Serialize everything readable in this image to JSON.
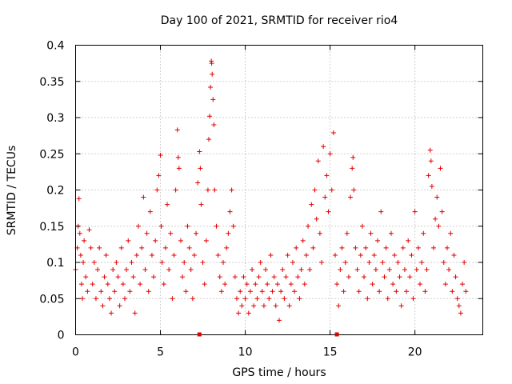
{
  "chart_data": {
    "type": "scatter",
    "title": "Day 100 of 2021, SRMTID for receiver rio4",
    "xlabel": "GPS time / hours",
    "ylabel": "SRMTID / TECUs",
    "xlim": [
      0,
      24
    ],
    "ylim": [
      0,
      0.4
    ],
    "x_ticks": [
      0,
      5,
      10,
      15,
      20
    ],
    "x_tick_labels": [
      "0",
      "5",
      "10",
      "15",
      "20"
    ],
    "y_ticks": [
      0,
      0.05,
      0.1,
      0.15,
      0.2,
      0.25,
      0.3,
      0.35,
      0.4
    ],
    "y_tick_labels": [
      "0",
      "0.05",
      "0.1",
      "0.15",
      "0.2",
      "0.25",
      "0.3",
      "0.35",
      "0.4"
    ],
    "grid": true,
    "marker": "+",
    "color": "#e00000",
    "x_axis_markers": [
      7.3,
      15.4
    ],
    "series": [
      {
        "name": "SRMTID",
        "points": [
          [
            0.0,
            0.09
          ],
          [
            0.1,
            0.12
          ],
          [
            0.15,
            0.15
          ],
          [
            0.2,
            0.188
          ],
          [
            0.25,
            0.14
          ],
          [
            0.3,
            0.11
          ],
          [
            0.35,
            0.07
          ],
          [
            0.4,
            0.05
          ],
          [
            0.45,
            0.1
          ],
          [
            0.5,
            0.13
          ],
          [
            0.6,
            0.08
          ],
          [
            0.7,
            0.06
          ],
          [
            0.8,
            0.145
          ],
          [
            0.9,
            0.12
          ],
          [
            1.0,
            0.07
          ],
          [
            1.1,
            0.1
          ],
          [
            1.2,
            0.05
          ],
          [
            1.3,
            0.09
          ],
          [
            1.4,
            0.12
          ],
          [
            1.5,
            0.06
          ],
          [
            1.6,
            0.04
          ],
          [
            1.7,
            0.08
          ],
          [
            1.8,
            0.11
          ],
          [
            1.9,
            0.07
          ],
          [
            2.0,
            0.05
          ],
          [
            2.1,
            0.03
          ],
          [
            2.2,
            0.09
          ],
          [
            2.3,
            0.06
          ],
          [
            2.4,
            0.1
          ],
          [
            2.5,
            0.08
          ],
          [
            2.6,
            0.04
          ],
          [
            2.7,
            0.12
          ],
          [
            2.8,
            0.07
          ],
          [
            2.9,
            0.05
          ],
          [
            3.0,
            0.09
          ],
          [
            3.1,
            0.13
          ],
          [
            3.2,
            0.06
          ],
          [
            3.3,
            0.1
          ],
          [
            3.4,
            0.08
          ],
          [
            3.5,
            0.03
          ],
          [
            3.6,
            0.11
          ],
          [
            3.7,
            0.15
          ],
          [
            3.8,
            0.07
          ],
          [
            3.9,
            0.12
          ],
          [
            4.0,
            0.19
          ],
          [
            4.1,
            0.09
          ],
          [
            4.2,
            0.14
          ],
          [
            4.3,
            0.06
          ],
          [
            4.4,
            0.17
          ],
          [
            4.5,
            0.11
          ],
          [
            4.6,
            0.08
          ],
          [
            4.7,
            0.13
          ],
          [
            4.8,
            0.2
          ],
          [
            4.9,
            0.22
          ],
          [
            5.0,
            0.248
          ],
          [
            5.05,
            0.15
          ],
          [
            5.1,
            0.1
          ],
          [
            5.2,
            0.07
          ],
          [
            5.3,
            0.12
          ],
          [
            5.4,
            0.18
          ],
          [
            5.5,
            0.09
          ],
          [
            5.6,
            0.14
          ],
          [
            5.7,
            0.05
          ],
          [
            5.8,
            0.11
          ],
          [
            5.9,
            0.2
          ],
          [
            6.0,
            0.283
          ],
          [
            6.05,
            0.245
          ],
          [
            6.1,
            0.23
          ],
          [
            6.2,
            0.13
          ],
          [
            6.3,
            0.08
          ],
          [
            6.4,
            0.1
          ],
          [
            6.5,
            0.06
          ],
          [
            6.6,
            0.15
          ],
          [
            6.7,
            0.12
          ],
          [
            6.8,
            0.09
          ],
          [
            6.9,
            0.05
          ],
          [
            7.0,
            0.11
          ],
          [
            7.1,
            0.14
          ],
          [
            7.2,
            0.21
          ],
          [
            7.3,
            0.253
          ],
          [
            7.35,
            0.23
          ],
          [
            7.4,
            0.18
          ],
          [
            7.5,
            0.1
          ],
          [
            7.6,
            0.07
          ],
          [
            7.7,
            0.13
          ],
          [
            7.8,
            0.2
          ],
          [
            7.85,
            0.27
          ],
          [
            7.9,
            0.302
          ],
          [
            7.95,
            0.342
          ],
          [
            8.0,
            0.378
          ],
          [
            8.02,
            0.375
          ],
          [
            8.05,
            0.36
          ],
          [
            8.1,
            0.325
          ],
          [
            8.15,
            0.29
          ],
          [
            8.2,
            0.2
          ],
          [
            8.3,
            0.15
          ],
          [
            8.4,
            0.11
          ],
          [
            8.5,
            0.08
          ],
          [
            8.6,
            0.06
          ],
          [
            8.7,
            0.1
          ],
          [
            8.8,
            0.07
          ],
          [
            8.9,
            0.12
          ],
          [
            9.0,
            0.14
          ],
          [
            9.1,
            0.17
          ],
          [
            9.2,
            0.2
          ],
          [
            9.3,
            0.15
          ],
          [
            9.4,
            0.08
          ],
          [
            9.5,
            0.05
          ],
          [
            9.6,
            0.03
          ],
          [
            9.7,
            0.06
          ],
          [
            9.8,
            0.04
          ],
          [
            9.9,
            0.08
          ],
          [
            10.0,
            0.05
          ],
          [
            10.1,
            0.07
          ],
          [
            10.2,
            0.03
          ],
          [
            10.3,
            0.06
          ],
          [
            10.4,
            0.09
          ],
          [
            10.5,
            0.04
          ],
          [
            10.6,
            0.07
          ],
          [
            10.7,
            0.05
          ],
          [
            10.8,
            0.08
          ],
          [
            10.9,
            0.1
          ],
          [
            11.0,
            0.06
          ],
          [
            11.1,
            0.04
          ],
          [
            11.2,
            0.09
          ],
          [
            11.3,
            0.07
          ],
          [
            11.4,
            0.05
          ],
          [
            11.5,
            0.11
          ],
          [
            11.6,
            0.06
          ],
          [
            11.7,
            0.08
          ],
          [
            11.8,
            0.04
          ],
          [
            11.9,
            0.07
          ],
          [
            12.0,
            0.02
          ],
          [
            12.1,
            0.06
          ],
          [
            12.2,
            0.09
          ],
          [
            12.3,
            0.05
          ],
          [
            12.4,
            0.08
          ],
          [
            12.5,
            0.11
          ],
          [
            12.6,
            0.04
          ],
          [
            12.7,
            0.07
          ],
          [
            12.8,
            0.1
          ],
          [
            12.9,
            0.06
          ],
          [
            13.0,
            0.12
          ],
          [
            13.1,
            0.08
          ],
          [
            13.2,
            0.05
          ],
          [
            13.3,
            0.09
          ],
          [
            13.4,
            0.13
          ],
          [
            13.5,
            0.07
          ],
          [
            13.6,
            0.11
          ],
          [
            13.7,
            0.15
          ],
          [
            13.8,
            0.09
          ],
          [
            13.9,
            0.18
          ],
          [
            14.0,
            0.12
          ],
          [
            14.1,
            0.2
          ],
          [
            14.2,
            0.16
          ],
          [
            14.3,
            0.24
          ],
          [
            14.4,
            0.14
          ],
          [
            14.5,
            0.1
          ],
          [
            14.6,
            0.26
          ],
          [
            14.7,
            0.19
          ],
          [
            14.8,
            0.22
          ],
          [
            14.9,
            0.17
          ],
          [
            15.0,
            0.25
          ],
          [
            15.1,
            0.2
          ],
          [
            15.2,
            0.279
          ],
          [
            15.3,
            0.11
          ],
          [
            15.4,
            0.07
          ],
          [
            15.5,
            0.04
          ],
          [
            15.6,
            0.09
          ],
          [
            15.7,
            0.12
          ],
          [
            15.8,
            0.06
          ],
          [
            15.9,
            0.1
          ],
          [
            16.0,
            0.14
          ],
          [
            16.1,
            0.08
          ],
          [
            16.2,
            0.19
          ],
          [
            16.3,
            0.23
          ],
          [
            16.35,
            0.245
          ],
          [
            16.4,
            0.2
          ],
          [
            16.5,
            0.12
          ],
          [
            16.6,
            0.09
          ],
          [
            16.7,
            0.06
          ],
          [
            16.8,
            0.11
          ],
          [
            16.9,
            0.15
          ],
          [
            17.0,
            0.08
          ],
          [
            17.1,
            0.12
          ],
          [
            17.2,
            0.05
          ],
          [
            17.3,
            0.1
          ],
          [
            17.4,
            0.14
          ],
          [
            17.5,
            0.07
          ],
          [
            17.6,
            0.11
          ],
          [
            17.7,
            0.09
          ],
          [
            17.8,
            0.13
          ],
          [
            17.9,
            0.06
          ],
          [
            18.0,
            0.17
          ],
          [
            18.1,
            0.1
          ],
          [
            18.2,
            0.08
          ],
          [
            18.3,
            0.12
          ],
          [
            18.4,
            0.05
          ],
          [
            18.5,
            0.09
          ],
          [
            18.6,
            0.14
          ],
          [
            18.7,
            0.07
          ],
          [
            18.8,
            0.11
          ],
          [
            18.9,
            0.06
          ],
          [
            19.0,
            0.1
          ],
          [
            19.1,
            0.08
          ],
          [
            19.2,
            0.04
          ],
          [
            19.3,
            0.12
          ],
          [
            19.4,
            0.09
          ],
          [
            19.5,
            0.06
          ],
          [
            19.6,
            0.13
          ],
          [
            19.7,
            0.08
          ],
          [
            19.8,
            0.11
          ],
          [
            19.9,
            0.05
          ],
          [
            20.0,
            0.17
          ],
          [
            20.1,
            0.09
          ],
          [
            20.2,
            0.12
          ],
          [
            20.3,
            0.07
          ],
          [
            20.4,
            0.1
          ],
          [
            20.5,
            0.14
          ],
          [
            20.6,
            0.06
          ],
          [
            20.7,
            0.09
          ],
          [
            20.8,
            0.22
          ],
          [
            20.9,
            0.255
          ],
          [
            20.95,
            0.24
          ],
          [
            21.0,
            0.205
          ],
          [
            21.1,
            0.12
          ],
          [
            21.2,
            0.16
          ],
          [
            21.3,
            0.19
          ],
          [
            21.4,
            0.15
          ],
          [
            21.5,
            0.23
          ],
          [
            21.6,
            0.17
          ],
          [
            21.7,
            0.1
          ],
          [
            21.8,
            0.07
          ],
          [
            21.9,
            0.12
          ],
          [
            22.0,
            0.09
          ],
          [
            22.1,
            0.14
          ],
          [
            22.2,
            0.06
          ],
          [
            22.3,
            0.11
          ],
          [
            22.4,
            0.08
          ],
          [
            22.5,
            0.05
          ],
          [
            22.6,
            0.04
          ],
          [
            22.7,
            0.03
          ],
          [
            22.8,
            0.07
          ],
          [
            22.9,
            0.1
          ],
          [
            23.0,
            0.06
          ]
        ]
      }
    ]
  }
}
